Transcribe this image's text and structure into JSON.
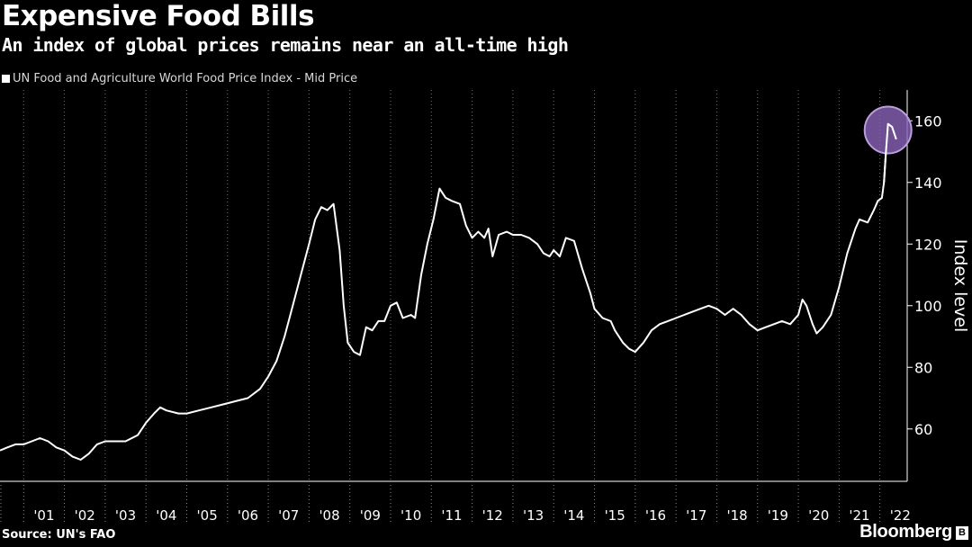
{
  "title": "Expensive Food Bills",
  "subtitle": "An index of global prices remains near an all-time high",
  "source": "Source: UN's FAO",
  "brand": "Bloomberg",
  "brand_mark": "B",
  "colors": {
    "background": "#000000",
    "line": "#ffffff",
    "grid": "#6e6e6e",
    "highlight": "#8a63b8"
  },
  "chart_data": {
    "type": "line",
    "title": "Expensive Food Bills",
    "subtitle": "An index of global prices remains near an all-time high",
    "xlabel": "",
    "ylabel": "Index level",
    "y_axis_side": "right",
    "ylim": [
      43,
      170
    ],
    "xlim": [
      2000.42,
      2022.67
    ],
    "yticks": [
      60,
      80,
      100,
      120,
      140,
      160
    ],
    "xtick_labels": [
      "'01",
      "'02",
      "'03",
      "'04",
      "'05",
      "'06",
      "'07",
      "'08",
      "'09",
      "'10",
      "'11",
      "'12",
      "'13",
      "'14",
      "'15",
      "'16",
      "'17",
      "'18",
      "'19",
      "'20",
      "'21",
      "'22"
    ],
    "xtick_years": [
      2001,
      2002,
      2003,
      2004,
      2005,
      2006,
      2007,
      2008,
      2009,
      2010,
      2011,
      2012,
      2013,
      2014,
      2015,
      2016,
      2017,
      2018,
      2019,
      2020,
      2021,
      2022
    ],
    "grid": "vertical dotted at year boundaries",
    "legend": "top-left",
    "annotation": "circle highlighting the 2022 peak",
    "highlight_point": [
      2022.2,
      157
    ],
    "series": [
      {
        "name": "UN Food and Agriculture World Food Price Index - Mid Price",
        "points": [
          [
            2000.42,
            53
          ],
          [
            2000.6,
            54
          ],
          [
            2000.8,
            55
          ],
          [
            2001.0,
            55
          ],
          [
            2001.2,
            56
          ],
          [
            2001.4,
            57
          ],
          [
            2001.6,
            56
          ],
          [
            2001.8,
            54
          ],
          [
            2002.0,
            53
          ],
          [
            2002.2,
            51
          ],
          [
            2002.4,
            50
          ],
          [
            2002.6,
            52
          ],
          [
            2002.8,
            55
          ],
          [
            2003.0,
            56
          ],
          [
            2003.2,
            56
          ],
          [
            2003.5,
            56
          ],
          [
            2003.8,
            58
          ],
          [
            2004.0,
            62
          ],
          [
            2004.2,
            65
          ],
          [
            2004.35,
            67
          ],
          [
            2004.5,
            66
          ],
          [
            2004.8,
            65
          ],
          [
            2005.0,
            65
          ],
          [
            2005.3,
            66
          ],
          [
            2005.6,
            67
          ],
          [
            2005.9,
            68
          ],
          [
            2006.2,
            69
          ],
          [
            2006.5,
            70
          ],
          [
            2006.8,
            73
          ],
          [
            2007.0,
            77
          ],
          [
            2007.2,
            82
          ],
          [
            2007.4,
            90
          ],
          [
            2007.6,
            100
          ],
          [
            2007.8,
            110
          ],
          [
            2008.0,
            120
          ],
          [
            2008.15,
            128
          ],
          [
            2008.3,
            132
          ],
          [
            2008.45,
            131
          ],
          [
            2008.6,
            133
          ],
          [
            2008.75,
            118
          ],
          [
            2008.85,
            100
          ],
          [
            2008.95,
            88
          ],
          [
            2009.1,
            85
          ],
          [
            2009.25,
            84
          ],
          [
            2009.4,
            93
          ],
          [
            2009.55,
            92
          ],
          [
            2009.7,
            95
          ],
          [
            2009.85,
            95
          ],
          [
            2010.0,
            100
          ],
          [
            2010.15,
            101
          ],
          [
            2010.3,
            96
          ],
          [
            2010.5,
            97
          ],
          [
            2010.6,
            96
          ],
          [
            2010.75,
            110
          ],
          [
            2010.9,
            120
          ],
          [
            2011.05,
            128
          ],
          [
            2011.2,
            138
          ],
          [
            2011.35,
            135
          ],
          [
            2011.5,
            134
          ],
          [
            2011.7,
            133
          ],
          [
            2011.85,
            126
          ],
          [
            2012.0,
            122
          ],
          [
            2012.15,
            124
          ],
          [
            2012.3,
            122
          ],
          [
            2012.4,
            125
          ],
          [
            2012.5,
            116
          ],
          [
            2012.65,
            123
          ],
          [
            2012.85,
            124
          ],
          [
            2013.0,
            123
          ],
          [
            2013.2,
            123
          ],
          [
            2013.4,
            122
          ],
          [
            2013.6,
            120
          ],
          [
            2013.75,
            117
          ],
          [
            2013.9,
            116
          ],
          [
            2014.0,
            118
          ],
          [
            2014.15,
            116
          ],
          [
            2014.3,
            122
          ],
          [
            2014.5,
            121
          ],
          [
            2014.7,
            112
          ],
          [
            2014.9,
            104
          ],
          [
            2015.0,
            99
          ],
          [
            2015.2,
            96
          ],
          [
            2015.4,
            95
          ],
          [
            2015.5,
            92
          ],
          [
            2015.7,
            88
          ],
          [
            2015.85,
            86
          ],
          [
            2016.0,
            85
          ],
          [
            2016.2,
            88
          ],
          [
            2016.4,
            92
          ],
          [
            2016.6,
            94
          ],
          [
            2016.8,
            95
          ],
          [
            2017.0,
            96
          ],
          [
            2017.2,
            97
          ],
          [
            2017.4,
            98
          ],
          [
            2017.6,
            99
          ],
          [
            2017.8,
            100
          ],
          [
            2018.0,
            99
          ],
          [
            2018.2,
            97
          ],
          [
            2018.4,
            99
          ],
          [
            2018.6,
            97
          ],
          [
            2018.8,
            94
          ],
          [
            2019.0,
            92
          ],
          [
            2019.2,
            93
          ],
          [
            2019.4,
            94
          ],
          [
            2019.6,
            95
          ],
          [
            2019.8,
            94
          ],
          [
            2020.0,
            97
          ],
          [
            2020.1,
            102
          ],
          [
            2020.2,
            100
          ],
          [
            2020.35,
            94
          ],
          [
            2020.45,
            91
          ],
          [
            2020.6,
            93
          ],
          [
            2020.8,
            97
          ],
          [
            2021.0,
            106
          ],
          [
            2021.2,
            117
          ],
          [
            2021.4,
            125
          ],
          [
            2021.5,
            128
          ],
          [
            2021.7,
            127
          ],
          [
            2021.85,
            131
          ],
          [
            2021.95,
            134
          ],
          [
            2022.05,
            135
          ],
          [
            2022.1,
            140
          ],
          [
            2022.15,
            150
          ],
          [
            2022.2,
            159
          ],
          [
            2022.3,
            158
          ],
          [
            2022.4,
            154
          ]
        ]
      }
    ]
  }
}
